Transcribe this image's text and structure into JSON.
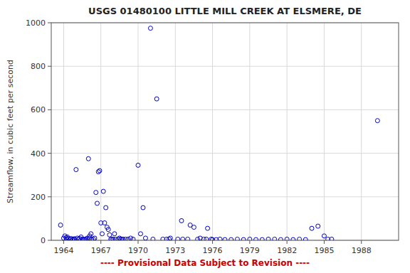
{
  "chart_data": {
    "type": "scatter",
    "title": "USGS 01480100 LITTLE MILL CREEK AT ELSMERE, DE",
    "ylabel": "Streamflow, in cubic feet per second",
    "x": [
      1963.75,
      1964.0,
      1964.1,
      1964.2,
      1964.25,
      1964.3,
      1964.4,
      1964.5,
      1964.6,
      1964.7,
      1964.75,
      1964.85,
      1964.9,
      1965.0,
      1965.1,
      1965.2,
      1965.3,
      1965.4,
      1965.5,
      1965.6,
      1965.7,
      1965.8,
      1965.9,
      1966.0,
      1966.05,
      1966.1,
      1966.2,
      1966.25,
      1966.4,
      1966.5,
      1966.6,
      1966.7,
      1966.8,
      1966.9,
      1967.0,
      1967.1,
      1967.2,
      1967.3,
      1967.4,
      1967.5,
      1967.6,
      1967.7,
      1967.8,
      1967.9,
      1968.0,
      1968.1,
      1968.2,
      1968.4,
      1968.5,
      1968.6,
      1968.7,
      1968.8,
      1969.0,
      1969.2,
      1969.4,
      1969.6,
      1970.0,
      1970.2,
      1970.4,
      1970.6,
      1971.0,
      1971.2,
      1971.5,
      1972.0,
      1972.3,
      1972.5,
      1972.6,
      1973.2,
      1973.5,
      1973.6,
      1974.0,
      1974.2,
      1974.5,
      1974.8,
      1975.0,
      1975.3,
      1975.5,
      1975.6,
      1975.9,
      1976.0,
      1976.3,
      1976.6,
      1977.0,
      1977.5,
      1978.0,
      1978.5,
      1979.0,
      1979.5,
      1980.0,
      1980.5,
      1981.0,
      1981.5,
      1982.0,
      1982.5,
      1983.0,
      1983.5,
      1984.0,
      1984.5,
      1985.0,
      1985.3,
      1985.6,
      1989.3
    ],
    "values": [
      70,
      10,
      20,
      12,
      5,
      15,
      8,
      5,
      8,
      3,
      5,
      7,
      5,
      325,
      10,
      5,
      8,
      15,
      5,
      5,
      3,
      5,
      10,
      375,
      10,
      20,
      30,
      5,
      5,
      10,
      220,
      170,
      315,
      320,
      80,
      30,
      225,
      80,
      150,
      60,
      50,
      25,
      5,
      5,
      5,
      30,
      5,
      5,
      10,
      5,
      5,
      5,
      5,
      5,
      10,
      5,
      345,
      30,
      150,
      10,
      975,
      5,
      650,
      5,
      5,
      5,
      10,
      5,
      90,
      5,
      5,
      70,
      60,
      5,
      10,
      5,
      5,
      55,
      5,
      3,
      3,
      5,
      3,
      3,
      5,
      3,
      5,
      3,
      3,
      5,
      5,
      3,
      5,
      3,
      5,
      3,
      55,
      65,
      20,
      5,
      5,
      550
    ],
    "color": "#0000cc",
    "marker": "open-circle",
    "xlim": [
      1963,
      1991
    ],
    "xticks": [
      1964,
      1967,
      1970,
      1973,
      1976,
      1979,
      1982,
      1985,
      1988
    ],
    "ylim": [
      0,
      1000
    ],
    "yticks": [
      0,
      200,
      400,
      600,
      800,
      1000
    ],
    "grid": true,
    "annotations": [
      {
        "text": "---- Provisional Data Subject to Revision ----",
        "color": "#cc0000"
      }
    ]
  }
}
